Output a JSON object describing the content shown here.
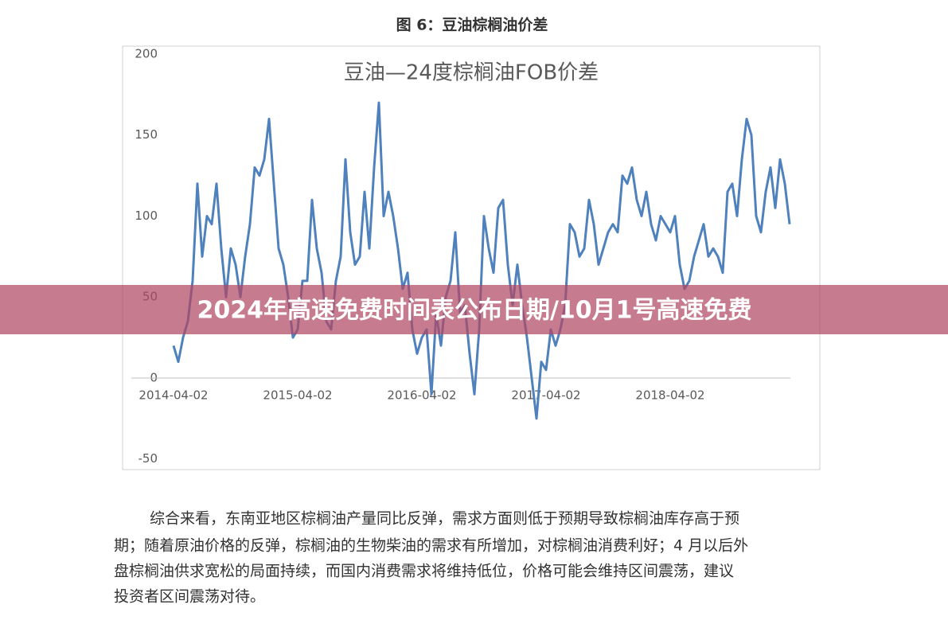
{
  "caption": "图 6：豆油棕榈油价差",
  "banner": "2024年高速免费时间表公布日期/10月1号高速免费",
  "paragraph": [
    "综合来看，东南亚地区棕榈油产量同比反弹，需求方面则低于预期导致棕榈油库存高于预",
    "期；随着原油价格的反弹，棕榈油的生物柴油的需求有所增加，对棕榈油消费利好；4 月以后外",
    "盘棕榈油供求宽松的局面持续，而国内消费需求将维持低位，价格可能会维持区间震荡，建议",
    "投资者区间震荡对待。"
  ],
  "chart_data": {
    "type": "line",
    "title": "豆油—24度棕榈油FOB价差",
    "color": "#4f81bd",
    "categories": [
      "2014-04-02",
      null,
      null,
      null,
      null,
      null,
      null,
      null,
      null,
      null,
      null,
      null,
      null,
      null,
      null,
      null,
      null,
      null,
      null,
      null,
      null,
      null,
      null,
      null,
      null,
      null,
      "2015-04-02",
      null,
      null,
      null,
      null,
      null,
      null,
      null,
      null,
      null,
      null,
      null,
      null,
      null,
      null,
      null,
      null,
      null,
      null,
      null,
      null,
      null,
      null,
      null,
      null,
      null,
      "2016-04-02",
      null,
      null,
      null,
      null,
      null,
      null,
      null,
      null,
      null,
      null,
      null,
      null,
      null,
      null,
      null,
      null,
      null,
      null,
      null,
      null,
      null,
      null,
      null,
      null,
      null,
      "2017-04-02",
      null,
      null,
      null,
      null,
      null,
      null,
      null,
      null,
      null,
      null,
      null,
      null,
      null,
      null,
      null,
      null,
      null,
      null,
      null,
      null,
      null,
      null,
      null,
      null,
      null,
      "2018-04-02",
      null,
      null,
      null,
      null,
      null,
      null,
      null,
      null,
      null,
      null,
      null,
      null,
      null,
      null,
      null,
      null,
      null,
      null,
      null,
      null,
      null,
      null,
      null,
      null,
      null
    ],
    "values": [
      20,
      10,
      25,
      35,
      60,
      120,
      75,
      100,
      95,
      120,
      80,
      50,
      80,
      70,
      50,
      75,
      95,
      130,
      125,
      135,
      160,
      120,
      80,
      70,
      50,
      25,
      30,
      60,
      60,
      110,
      80,
      65,
      35,
      30,
      60,
      75,
      135,
      90,
      70,
      75,
      115,
      80,
      130,
      170,
      100,
      115,
      100,
      80,
      55,
      65,
      30,
      15,
      25,
      30,
      -10,
      40,
      20,
      50,
      60,
      90,
      40,
      45,
      15,
      -10,
      30,
      100,
      80,
      65,
      105,
      110,
      70,
      45,
      70,
      45,
      25,
      0,
      -25,
      10,
      5,
      30,
      20,
      30,
      45,
      95,
      90,
      75,
      80,
      110,
      95,
      70,
      80,
      90,
      95,
      90,
      125,
      120,
      130,
      110,
      100,
      115,
      95,
      85,
      100,
      95,
      90,
      100,
      70,
      55,
      60,
      75,
      85,
      95,
      75,
      80,
      75,
      65,
      115,
      120,
      100,
      135,
      160,
      150,
      100,
      90,
      115,
      130,
      105,
      135,
      120,
      95
    ],
    "ylim": [
      -50,
      200
    ],
    "yticks": [
      -50,
      0,
      50,
      100,
      150,
      200
    ],
    "grid": false
  }
}
